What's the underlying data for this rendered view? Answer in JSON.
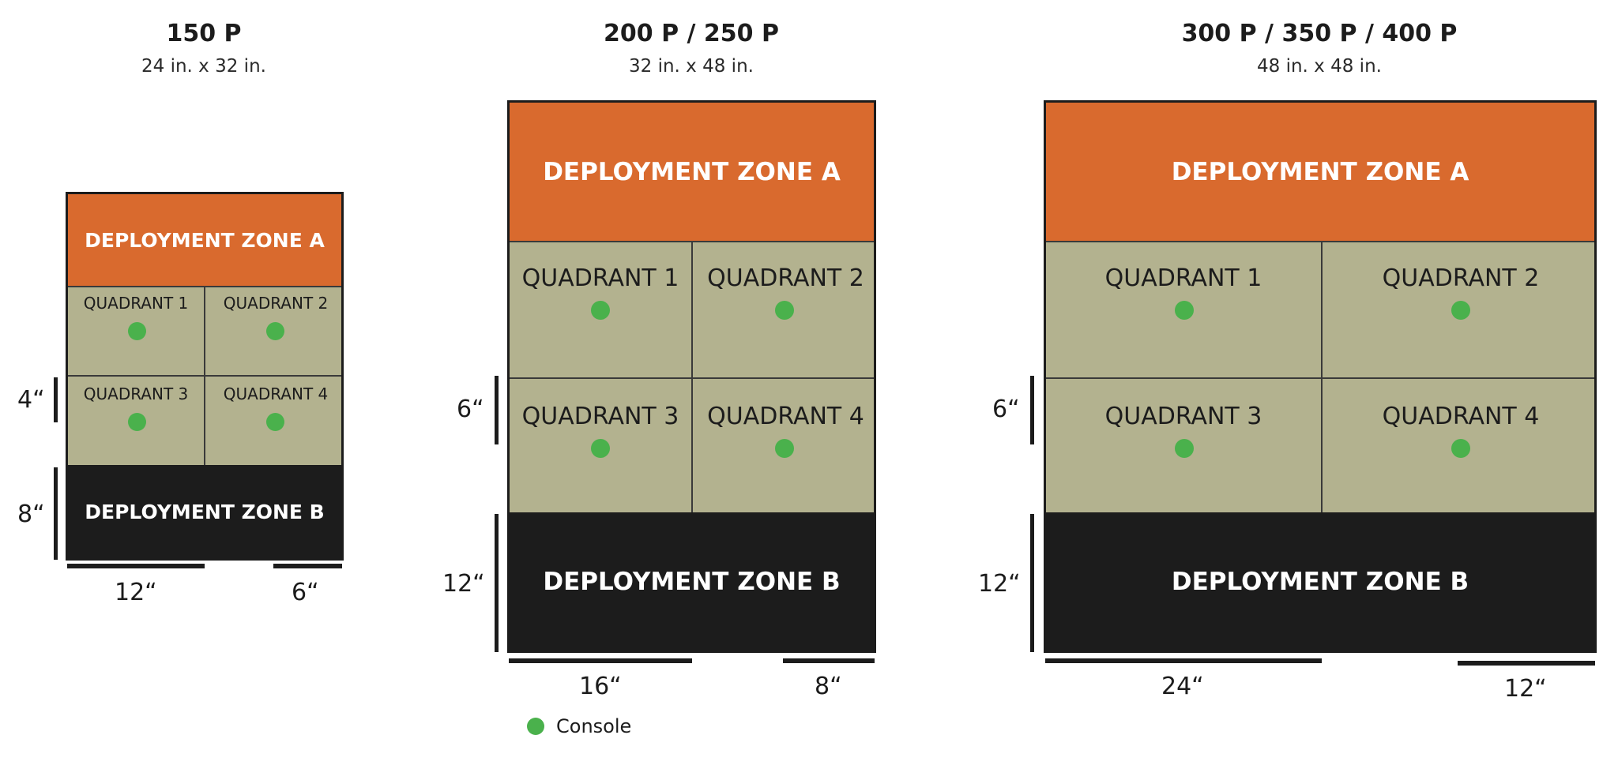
{
  "maps": [
    {
      "title": "150 P",
      "size": "24 in. x 32 in.",
      "zone_a": "DEPLOYMENT ZONE A",
      "zone_b": "DEPLOYMENT ZONE B",
      "quadrants": [
        "QUADRANT 1",
        "QUADRANT 2",
        "QUADRANT 3",
        "QUADRANT 4"
      ],
      "dims": {
        "quadrant_height": "4“",
        "zone_height": "8“",
        "half_width": "12“",
        "quarter_width": "6“"
      }
    },
    {
      "title": "200 P / 250 P",
      "size": "32 in. x 48 in.",
      "zone_a": "DEPLOYMENT ZONE A",
      "zone_b": "DEPLOYMENT ZONE B",
      "quadrants": [
        "QUADRANT 1",
        "QUADRANT 2",
        "QUADRANT 3",
        "QUADRANT 4"
      ],
      "dims": {
        "quadrant_height": "6“",
        "zone_height": "12“",
        "half_width": "16“",
        "quarter_width": "8“"
      }
    },
    {
      "title": "300 P / 350 P / 400 P",
      "size": "48 in. x 48 in.",
      "zone_a": "DEPLOYMENT ZONE A",
      "zone_b": "DEPLOYMENT ZONE B",
      "quadrants": [
        "QUADRANT 1",
        "QUADRANT 2",
        "QUADRANT 3",
        "QUADRANT 4"
      ],
      "dims": {
        "quadrant_height": "6“",
        "zone_height": "12“",
        "half_width": "24“",
        "quarter_width": "12“"
      }
    }
  ],
  "legend": {
    "console_label": "Console",
    "icon": "console-dot-icon"
  },
  "colors": {
    "zone_a": "#d96a2e",
    "zone_b": "#1c1c1c",
    "quadrant": "#b3b28f",
    "console": "#4ab14c"
  }
}
